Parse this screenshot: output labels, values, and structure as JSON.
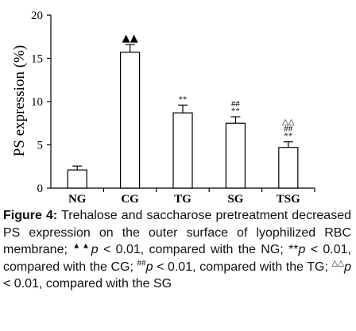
{
  "chart_data": {
    "type": "bar",
    "title": "",
    "xlabel": "",
    "ylabel": "PS expression (%)",
    "ylim": [
      0,
      20
    ],
    "yticks": [
      0,
      5,
      10,
      15,
      20
    ],
    "categories": [
      "NG",
      "CG",
      "TG",
      "SG",
      "TSG"
    ],
    "values": [
      2.1,
      15.7,
      8.7,
      7.5,
      4.7
    ],
    "errors": [
      0.45,
      0.9,
      0.9,
      0.75,
      0.65
    ],
    "bar_fill": "#ffffff",
    "bar_stroke": "#000000",
    "annotations": [
      [],
      [
        "▲▲"
      ],
      [
        "**"
      ],
      [
        "##",
        "**"
      ],
      [
        "△△",
        "##",
        "**"
      ]
    ]
  },
  "caption": {
    "label": "Figure 4:",
    "part1": " Trehalose and saccharose pretreatment decreased PS expression on the outer surface of lyophilized RBC membrane; ",
    "sup1": "▲▲",
    "p1": "p",
    "part2": " < 0.01, compared with the NG; **",
    "p2": "p",
    "part3": " < 0.01, compared with the CG; ",
    "sup3": "##",
    "p3": "p",
    "part4": " < 0.01, compared with the TG; ",
    "sup4": "△△",
    "p4": "p",
    "part5": " < 0.01, compared with the SG"
  }
}
